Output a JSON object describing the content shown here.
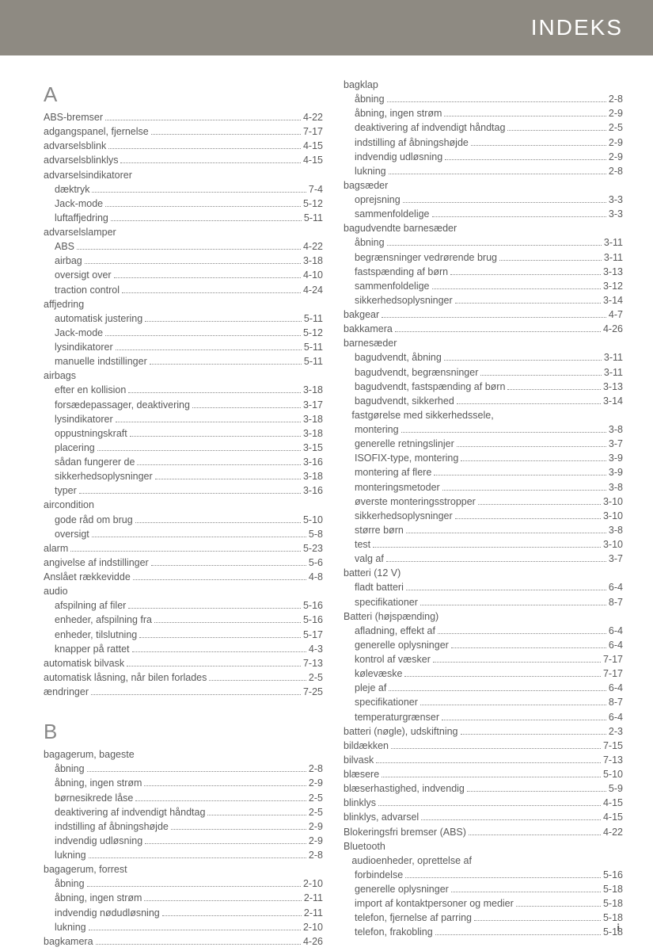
{
  "header": {
    "title": "INDEKS",
    "bg": "#8e8a82",
    "fg": "#ffffff"
  },
  "footer": {
    "page": "i"
  },
  "columns": [
    {
      "blocks": [
        {
          "type": "letter",
          "text": "A"
        },
        {
          "type": "entry",
          "label": "ABS-bremser",
          "page": "4-22"
        },
        {
          "type": "entry",
          "label": "adgangspanel, fjernelse",
          "page": "7-17"
        },
        {
          "type": "entry",
          "label": "advarselsblink",
          "page": "4-15"
        },
        {
          "type": "entry",
          "label": "advarselsblinklys",
          "page": "4-15"
        },
        {
          "type": "head",
          "label": "advarselsindikatorer"
        },
        {
          "type": "sub",
          "label": "dæktryk",
          "page": "7-4"
        },
        {
          "type": "sub",
          "label": "Jack-mode",
          "page": "5-12"
        },
        {
          "type": "sub",
          "label": "luftaffjedring",
          "page": "5-11"
        },
        {
          "type": "head",
          "label": "advarselslamper"
        },
        {
          "type": "sub",
          "label": "ABS",
          "page": "4-22"
        },
        {
          "type": "sub",
          "label": "airbag",
          "page": "3-18"
        },
        {
          "type": "sub",
          "label": "oversigt over",
          "page": "4-10"
        },
        {
          "type": "sub",
          "label": "traction control",
          "page": "4-24"
        },
        {
          "type": "head",
          "label": "affjedring"
        },
        {
          "type": "sub",
          "label": "automatisk justering",
          "page": "5-11"
        },
        {
          "type": "sub",
          "label": "Jack-mode",
          "page": "5-12"
        },
        {
          "type": "sub",
          "label": "lysindikatorer",
          "page": "5-11"
        },
        {
          "type": "sub",
          "label": "manuelle indstillinger",
          "page": "5-11"
        },
        {
          "type": "head",
          "label": "airbags"
        },
        {
          "type": "sub",
          "label": "efter en kollision",
          "page": "3-18"
        },
        {
          "type": "sub",
          "label": "forsædepassager, deaktivering",
          "page": "3-17"
        },
        {
          "type": "sub",
          "label": "lysindikatorer",
          "page": "3-18"
        },
        {
          "type": "sub",
          "label": "oppustningskraft",
          "page": "3-18"
        },
        {
          "type": "sub",
          "label": "placering",
          "page": "3-15"
        },
        {
          "type": "sub",
          "label": "sådan fungerer de",
          "page": "3-16"
        },
        {
          "type": "sub",
          "label": "sikkerhedsoplysninger",
          "page": "3-18"
        },
        {
          "type": "sub",
          "label": "typer",
          "page": "3-16"
        },
        {
          "type": "head",
          "label": "aircondition"
        },
        {
          "type": "sub",
          "label": "gode råd om brug",
          "page": "5-10"
        },
        {
          "type": "sub",
          "label": "oversigt",
          "page": "5-8"
        },
        {
          "type": "entry",
          "label": "alarm",
          "page": "5-23"
        },
        {
          "type": "entry",
          "label": "angivelse af indstillinger",
          "page": "5-6"
        },
        {
          "type": "entry",
          "label": "Anslået rækkevidde",
          "page": "4-8"
        },
        {
          "type": "head",
          "label": "audio"
        },
        {
          "type": "sub",
          "label": "afspilning af filer",
          "page": "5-16"
        },
        {
          "type": "sub",
          "label": "enheder, afspilning fra",
          "page": "5-16"
        },
        {
          "type": "sub",
          "label": "enheder, tilslutning",
          "page": "5-17"
        },
        {
          "type": "sub",
          "label": "knapper på rattet",
          "page": "4-3"
        },
        {
          "type": "entry",
          "label": "automatisk bilvask",
          "page": "7-13"
        },
        {
          "type": "entry",
          "label": "automatisk låsning, når bilen forlades",
          "page": "2-5"
        },
        {
          "type": "entry",
          "label": "ændringer",
          "page": "7-25"
        },
        {
          "type": "letter",
          "text": "B",
          "class": "b"
        },
        {
          "type": "head",
          "label": "bagagerum, bageste"
        },
        {
          "type": "sub",
          "label": "åbning",
          "page": "2-8"
        },
        {
          "type": "sub",
          "label": "åbning, ingen strøm",
          "page": "2-9"
        },
        {
          "type": "sub",
          "label": "børnesikrede låse",
          "page": "2-5"
        },
        {
          "type": "sub",
          "label": "deaktivering af indvendigt håndtag",
          "page": "2-5"
        },
        {
          "type": "sub",
          "label": "indstilling af åbningshøjde",
          "page": "2-9"
        },
        {
          "type": "sub",
          "label": "indvendig udløsning",
          "page": "2-9"
        },
        {
          "type": "sub",
          "label": "lukning",
          "page": "2-8"
        },
        {
          "type": "head",
          "label": "bagagerum, forrest"
        },
        {
          "type": "sub",
          "label": "åbning",
          "page": "2-10"
        },
        {
          "type": "sub",
          "label": "åbning, ingen strøm",
          "page": "2-11"
        },
        {
          "type": "sub",
          "label": "indvendig nødudløsning",
          "page": "2-11"
        },
        {
          "type": "sub",
          "label": "lukning",
          "page": "2-10"
        },
        {
          "type": "entry",
          "label": "bagkamera",
          "page": "4-26"
        }
      ]
    },
    {
      "blocks": [
        {
          "type": "head",
          "label": "bagklap"
        },
        {
          "type": "sub",
          "label": "åbning",
          "page": "2-8"
        },
        {
          "type": "sub",
          "label": "åbning, ingen strøm",
          "page": "2-9"
        },
        {
          "type": "sub",
          "label": "deaktivering af indvendigt håndtag",
          "page": "2-5"
        },
        {
          "type": "sub",
          "label": "indstilling af åbningshøjde",
          "page": "2-9"
        },
        {
          "type": "sub",
          "label": "indvendig udløsning",
          "page": "2-9"
        },
        {
          "type": "sub",
          "label": "lukning",
          "page": "2-8"
        },
        {
          "type": "head",
          "label": "bagsæder"
        },
        {
          "type": "sub",
          "label": "oprejsning",
          "page": "3-3"
        },
        {
          "type": "sub",
          "label": "sammenfoldelige",
          "page": "3-3"
        },
        {
          "type": "head",
          "label": "bagudvendte barnesæder"
        },
        {
          "type": "sub",
          "label": "åbning",
          "page": "3-11"
        },
        {
          "type": "sub",
          "label": "begrænsninger vedrørende brug",
          "page": "3-11"
        },
        {
          "type": "sub",
          "label": "fastspænding af børn",
          "page": "3-13"
        },
        {
          "type": "sub",
          "label": "sammenfoldelige",
          "page": "3-12"
        },
        {
          "type": "sub",
          "label": "sikkerhedsoplysninger",
          "page": "3-14"
        },
        {
          "type": "entry",
          "label": "bakgear",
          "page": "4-7"
        },
        {
          "type": "entry",
          "label": "bakkamera",
          "page": "4-26"
        },
        {
          "type": "head",
          "label": "barnesæder"
        },
        {
          "type": "sub",
          "label": "bagudvendt, åbning",
          "page": "3-11"
        },
        {
          "type": "sub",
          "label": "bagudvendt, begrænsninger",
          "page": "3-11"
        },
        {
          "type": "sub",
          "label": "bagudvendt, fastspænding af børn",
          "page": "3-13"
        },
        {
          "type": "sub",
          "label": "bagudvendt, sikkerhed",
          "page": "3-14"
        },
        {
          "type": "head",
          "label": "   fastgørelse med sikkerhedssele,"
        },
        {
          "type": "sub",
          "label": "montering",
          "page": "3-8"
        },
        {
          "type": "sub",
          "label": "generelle retningslinjer",
          "page": "3-7"
        },
        {
          "type": "sub",
          "label": "ISOFIX-type, montering",
          "page": "3-9"
        },
        {
          "type": "sub",
          "label": "montering af flere",
          "page": "3-9"
        },
        {
          "type": "sub",
          "label": "monteringsmetoder",
          "page": "3-8"
        },
        {
          "type": "sub",
          "label": "øverste monteringsstropper",
          "page": "3-10"
        },
        {
          "type": "sub",
          "label": "sikkerhedsoplysninger",
          "page": "3-10"
        },
        {
          "type": "sub",
          "label": "større børn",
          "page": "3-8"
        },
        {
          "type": "sub",
          "label": "test",
          "page": "3-10"
        },
        {
          "type": "sub",
          "label": "valg af",
          "page": "3-7"
        },
        {
          "type": "head",
          "label": "batteri (12 V)"
        },
        {
          "type": "sub",
          "label": "fladt batteri",
          "page": "6-4"
        },
        {
          "type": "sub",
          "label": "specifikationer",
          "page": "8-7"
        },
        {
          "type": "head",
          "label": "Batteri (højspænding)"
        },
        {
          "type": "sub",
          "label": "afladning, effekt af",
          "page": "6-4"
        },
        {
          "type": "sub",
          "label": "generelle oplysninger",
          "page": "6-4"
        },
        {
          "type": "sub",
          "label": "kontrol af væsker",
          "page": "7-17"
        },
        {
          "type": "sub",
          "label": "kølevæske",
          "page": "7-17"
        },
        {
          "type": "sub",
          "label": "pleje af",
          "page": "6-4"
        },
        {
          "type": "sub",
          "label": "specifikationer",
          "page": "8-7"
        },
        {
          "type": "sub",
          "label": "temperaturgrænser",
          "page": "6-4"
        },
        {
          "type": "entry",
          "label": "batteri (nøgle), udskiftning",
          "page": "2-3"
        },
        {
          "type": "entry",
          "label": "bildækken",
          "page": "7-15"
        },
        {
          "type": "entry",
          "label": "bilvask",
          "page": "7-13"
        },
        {
          "type": "entry",
          "label": "blæsere",
          "page": "5-10"
        },
        {
          "type": "entry",
          "label": "blæserhastighed, indvendig",
          "page": "5-9"
        },
        {
          "type": "entry",
          "label": "blinklys",
          "page": "4-15"
        },
        {
          "type": "entry",
          "label": "blinklys, advarsel",
          "page": "4-15"
        },
        {
          "type": "entry",
          "label": "Blokeringsfri bremser (ABS)",
          "page": "4-22"
        },
        {
          "type": "head",
          "label": "Bluetooth"
        },
        {
          "type": "head",
          "label": "   audioenheder, oprettelse af"
        },
        {
          "type": "sub",
          "label": "forbindelse",
          "page": "5-16"
        },
        {
          "type": "sub",
          "label": "generelle oplysninger",
          "page": "5-18"
        },
        {
          "type": "sub",
          "label": "import af kontaktpersoner og medier",
          "page": "5-18"
        },
        {
          "type": "sub",
          "label": "telefon, fjernelse af parring",
          "page": "5-18"
        },
        {
          "type": "sub",
          "label": "telefon, frakobling",
          "page": "5-18"
        }
      ]
    }
  ]
}
